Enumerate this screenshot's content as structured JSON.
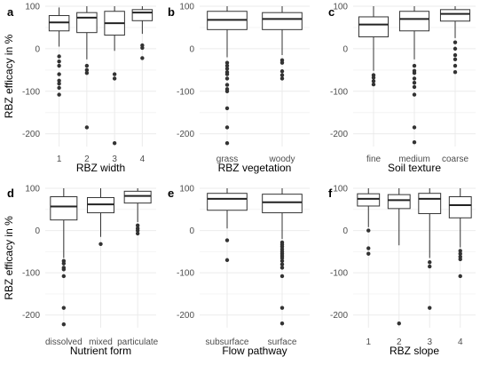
{
  "figure": {
    "shared_ylabel": "RBZ efficacy in %"
  },
  "chart_data": [
    {
      "panel": "a",
      "type": "box",
      "xlabel": "RBZ width",
      "ylabel": "RBZ efficacy in %",
      "ylim": [
        -230,
        100
      ],
      "yticks": [
        100,
        0,
        -100,
        -200
      ],
      "categories": [
        "1",
        "2",
        "3",
        "4"
      ],
      "boxes": [
        {
          "whisker_low": 5,
          "q1": 42,
          "median": 62,
          "q3": 78,
          "whisker_high": 97,
          "outliers": [
            -18,
            -30,
            -40,
            -60,
            -75,
            -82,
            -92,
            -108
          ]
        },
        {
          "whisker_low": -25,
          "q1": 38,
          "median": 73,
          "q3": 85,
          "whisker_high": 100,
          "outliers": [
            -40,
            -50,
            -57,
            -185
          ]
        },
        {
          "whisker_low": -5,
          "q1": 32,
          "median": 60,
          "q3": 88,
          "whisker_high": 100,
          "outliers": [
            -60,
            -70,
            -222
          ]
        },
        {
          "whisker_low": 35,
          "q1": 66,
          "median": 85,
          "q3": 92,
          "whisker_high": 100,
          "outliers": [
            8,
            2,
            -22
          ]
        }
      ]
    },
    {
      "panel": "b",
      "type": "box",
      "xlabel": "RBZ vegetation",
      "ylabel": "",
      "ylim": [
        -230,
        100
      ],
      "yticks": [
        100,
        0,
        -100,
        -200
      ],
      "categories": [
        "grass",
        "woody"
      ],
      "boxes": [
        {
          "whisker_low": -20,
          "q1": 45,
          "median": 68,
          "q3": 88,
          "whisker_high": 100,
          "outliers": [
            -33,
            -40,
            -47,
            -55,
            -60,
            -70,
            -85,
            -95,
            -100,
            -140,
            -185,
            -222
          ]
        },
        {
          "whisker_low": -15,
          "q1": 45,
          "median": 70,
          "q3": 85,
          "whisker_high": 100,
          "outliers": [
            -27,
            -33,
            -53,
            -62,
            -70
          ]
        }
      ]
    },
    {
      "panel": "c",
      "type": "box",
      "xlabel": "Soil texture",
      "ylabel": "",
      "ylim": [
        -230,
        100
      ],
      "yticks": [
        100,
        0,
        -100,
        -200
      ],
      "categories": [
        "fine",
        "medium",
        "coarse"
      ],
      "boxes": [
        {
          "whisker_low": -52,
          "q1": 28,
          "median": 57,
          "q3": 75,
          "whisker_high": 100,
          "outliers": [
            -62,
            -68,
            -76,
            -84
          ]
        },
        {
          "whisker_low": -25,
          "q1": 42,
          "median": 70,
          "q3": 88,
          "whisker_high": 100,
          "outliers": [
            -40,
            -52,
            -57,
            -70,
            -80,
            -90,
            -108,
            -185,
            -220
          ]
        },
        {
          "whisker_low": 25,
          "q1": 65,
          "median": 82,
          "q3": 92,
          "whisker_high": 100,
          "outliers": [
            15,
            0,
            -15,
            -25,
            -40,
            -55
          ]
        }
      ]
    },
    {
      "panel": "d",
      "type": "box",
      "xlabel": "Nutrient form",
      "ylabel": "RBZ efficacy in %",
      "ylim": [
        -230,
        100
      ],
      "yticks": [
        100,
        0,
        -100,
        -200
      ],
      "categories": [
        "dissolved",
        "mixed",
        "particulate"
      ],
      "boxes": [
        {
          "whisker_low": -65,
          "q1": 25,
          "median": 57,
          "q3": 80,
          "whisker_high": 100,
          "outliers": [
            -72,
            -78,
            -88,
            -92,
            -108,
            -183,
            -222
          ]
        },
        {
          "whisker_low": -15,
          "q1": 42,
          "median": 62,
          "q3": 78,
          "whisker_high": 100,
          "outliers": [
            -32
          ]
        },
        {
          "whisker_low": 20,
          "q1": 65,
          "median": 82,
          "q3": 93,
          "whisker_high": 100,
          "outliers": [
            12,
            5,
            0,
            -7
          ]
        }
      ]
    },
    {
      "panel": "e",
      "type": "box",
      "xlabel": "Flow pathway",
      "ylabel": "",
      "ylim": [
        -230,
        100
      ],
      "yticks": [
        100,
        0,
        -100,
        -200
      ],
      "categories": [
        "subsurface",
        "surface"
      ],
      "boxes": [
        {
          "whisker_low": 5,
          "q1": 48,
          "median": 75,
          "q3": 88,
          "whisker_high": 100,
          "outliers": [
            -23,
            -70
          ]
        },
        {
          "whisker_low": -20,
          "q1": 42,
          "median": 67,
          "q3": 86,
          "whisker_high": 100,
          "outliers": [
            -28,
            -33,
            -38,
            -44,
            -50,
            -55,
            -60,
            -65,
            -72,
            -80,
            -88,
            -108,
            -183,
            -220
          ]
        }
      ]
    },
    {
      "panel": "f",
      "type": "box",
      "xlabel": "RBZ slope",
      "ylabel": "",
      "ylim": [
        -230,
        100
      ],
      "yticks": [
        100,
        0,
        -100,
        -200
      ],
      "categories": [
        "1",
        "2",
        "3",
        "4"
      ],
      "boxes": [
        {
          "whisker_low": 8,
          "q1": 58,
          "median": 75,
          "q3": 87,
          "whisker_high": 100,
          "outliers": [
            0,
            -42,
            -55
          ]
        },
        {
          "whisker_low": -35,
          "q1": 52,
          "median": 72,
          "q3": 85,
          "whisker_high": 100,
          "outliers": [
            -220
          ]
        },
        {
          "whisker_low": -65,
          "q1": 40,
          "median": 75,
          "q3": 88,
          "whisker_high": 100,
          "outliers": [
            -75,
            -85,
            -183
          ]
        },
        {
          "whisker_low": -40,
          "q1": 30,
          "median": 60,
          "q3": 80,
          "whisker_high": 100,
          "outliers": [
            -48,
            -55,
            -62,
            -68,
            -108
          ]
        }
      ]
    }
  ]
}
